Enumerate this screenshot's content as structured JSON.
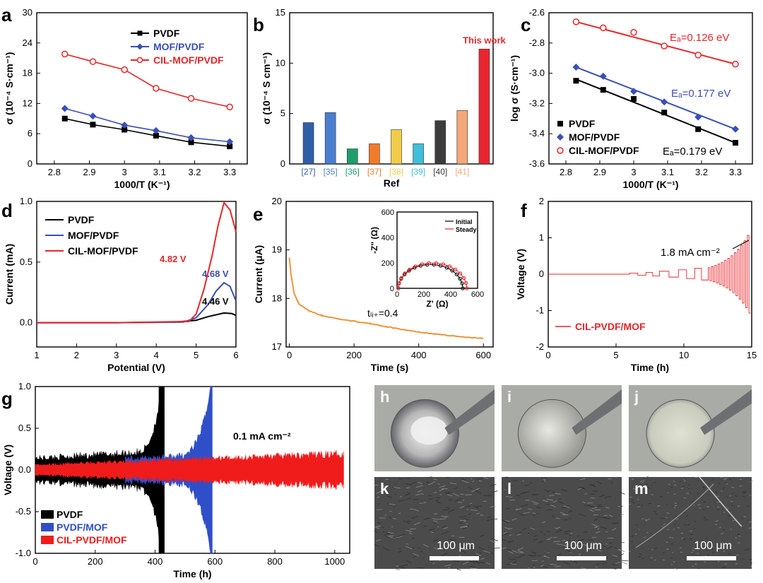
{
  "chart_data": [
    {
      "panel": "a",
      "type": "line",
      "xlabel": "1000/T (K⁻¹)",
      "ylabel": "σ (10⁻⁴ S·cm⁻¹)",
      "xlim": [
        2.75,
        3.35
      ],
      "ylim": [
        0,
        30
      ],
      "xticks": [
        2.8,
        2.9,
        3.0,
        3.1,
        3.2,
        3.3
      ],
      "yticks": [
        0,
        6,
        12,
        18,
        24,
        30
      ],
      "legend": "top-right",
      "x": [
        2.83,
        2.91,
        3.0,
        3.09,
        3.19,
        3.3
      ],
      "series": [
        {
          "name": "PVDF",
          "color": "#000000",
          "marker": "square",
          "values": [
            9.0,
            7.8,
            6.8,
            5.6,
            4.3,
            3.5
          ]
        },
        {
          "name": "MOF/PVDF",
          "color": "#3a4fb5",
          "marker": "diamond",
          "values": [
            11.0,
            9.5,
            7.7,
            6.6,
            5.2,
            4.4
          ]
        },
        {
          "name": "CIL-MOF/PVDF",
          "color": "#e8252a",
          "marker": "circle",
          "values": [
            21.8,
            20.3,
            18.7,
            15.0,
            13.0,
            11.3
          ]
        }
      ]
    },
    {
      "panel": "b",
      "type": "bar",
      "xlabel": "Ref",
      "ylabel": "σ (10⁻⁴ S cm⁻¹)",
      "ylim": [
        0,
        15
      ],
      "yticks": [
        0,
        5,
        10,
        15
      ],
      "categories": [
        "[27]",
        "[35]",
        "[36]",
        "[37]",
        "[38]",
        "[39]",
        "[40]",
        "[41]",
        ""
      ],
      "values": [
        4.1,
        5.1,
        1.5,
        2.0,
        3.4,
        2.0,
        4.3,
        5.3,
        11.4
      ],
      "colors": [
        "#2f5ea8",
        "#4a7fd0",
        "#1e9e6a",
        "#f07c2a",
        "#f0cc4a",
        "#3fbfd8",
        "#3c3c3c",
        "#f2a878",
        "#ea2530"
      ],
      "annotation": "This work"
    },
    {
      "panel": "c",
      "type": "scatter",
      "xlabel": "1000/T (K⁻¹)",
      "ylabel": "log σ (S·cm⁻¹)",
      "xlim": [
        2.75,
        3.35
      ],
      "ylim": [
        -3.6,
        -2.6
      ],
      "xticks": [
        2.8,
        2.9,
        3.0,
        3.1,
        3.2,
        3.3
      ],
      "yticks": [
        -3.6,
        -3.4,
        -3.2,
        -3.0,
        -2.8,
        -2.6
      ],
      "legend": "bottom-left",
      "x": [
        2.83,
        2.91,
        3.0,
        3.09,
        3.19,
        3.3
      ],
      "series": [
        {
          "name": "PVDF",
          "color": "#000000",
          "marker": "square",
          "values": [
            -3.05,
            -3.11,
            -3.17,
            -3.26,
            -3.37,
            -3.46
          ],
          "fit": [
            -3.04,
            -3.46
          ],
          "ea": "Eₐ=0.179 eV"
        },
        {
          "name": "MOF/PVDF",
          "color": "#3a4fb5",
          "marker": "diamond",
          "values": [
            -2.96,
            -3.02,
            -3.12,
            -3.19,
            -3.29,
            -3.37
          ],
          "fit": [
            -2.96,
            -3.37
          ],
          "ea": "Eₐ=0.177 eV"
        },
        {
          "name": "CIL-MOF/PVDF",
          "color": "#e8252a",
          "marker": "circle",
          "values": [
            -2.66,
            -2.7,
            -2.73,
            -2.82,
            -2.88,
            -2.94
          ],
          "fit": [
            -2.66,
            -2.94
          ],
          "ea": "Eₐ=0.126 eV"
        }
      ]
    },
    {
      "panel": "d",
      "type": "line",
      "xlabel": "Potential (V)",
      "ylabel": "Current (mA)",
      "xlim": [
        1,
        6
      ],
      "ylim": [
        -0.2,
        1.0
      ],
      "xticks": [
        1,
        2,
        3,
        4,
        5,
        6
      ],
      "yticks": [
        0.0,
        0.5,
        1.0
      ],
      "legend": "top-left",
      "series": [
        {
          "name": "PVDF",
          "color": "#000000",
          "points": [
            [
              1,
              0.0
            ],
            [
              3,
              0.0
            ],
            [
              4.46,
              0.005
            ],
            [
              5.0,
              0.02
            ],
            [
              5.3,
              0.05
            ],
            [
              5.7,
              0.08
            ],
            [
              5.9,
              0.075
            ],
            [
              6.0,
              0.06
            ]
          ],
          "label": "4.46 V"
        },
        {
          "name": "MOF/PVDF",
          "color": "#3a4fb5",
          "points": [
            [
              1,
              0.0
            ],
            [
              3,
              0.0
            ],
            [
              4.68,
              0.005
            ],
            [
              5.0,
              0.04
            ],
            [
              5.3,
              0.15
            ],
            [
              5.5,
              0.26
            ],
            [
              5.7,
              0.33
            ],
            [
              5.85,
              0.3
            ],
            [
              6.0,
              0.18
            ]
          ],
          "label": "4.68 V"
        },
        {
          "name": "CIL-MOF/PVDF",
          "color": "#e8252a",
          "points": [
            [
              1,
              0.0
            ],
            [
              3,
              0.0
            ],
            [
              4.82,
              0.01
            ],
            [
              5.0,
              0.07
            ],
            [
              5.2,
              0.28
            ],
            [
              5.4,
              0.55
            ],
            [
              5.55,
              0.8
            ],
            [
              5.7,
              0.99
            ],
            [
              5.85,
              0.93
            ],
            [
              6.0,
              0.75
            ]
          ],
          "label": "4.82 V"
        }
      ]
    },
    {
      "panel": "e",
      "type": "line",
      "xlabel": "Time (s)",
      "ylabel": "Current (μA)",
      "xlim": [
        -10,
        630
      ],
      "ylim": [
        17,
        20
      ],
      "xticks": [
        0,
        200,
        400,
        600
      ],
      "yticks": [
        17,
        18,
        19,
        20
      ],
      "annotation": "tₗᵢ₊=0.4",
      "series": [
        {
          "name": "",
          "color": "#f08a24",
          "points": [
            [
              0,
              18.85
            ],
            [
              5,
              18.5
            ],
            [
              15,
              18.1
            ],
            [
              30,
              17.88
            ],
            [
              60,
              17.75
            ],
            [
              100,
              17.65
            ],
            [
              150,
              17.58
            ],
            [
              200,
              17.53
            ],
            [
              250,
              17.48
            ],
            [
              300,
              17.42
            ],
            [
              350,
              17.36
            ],
            [
              400,
              17.31
            ],
            [
              450,
              17.27
            ],
            [
              500,
              17.23
            ],
            [
              550,
              17.2
            ],
            [
              600,
              17.18
            ]
          ]
        }
      ],
      "inset": {
        "type": "scatter",
        "xlabel": "Z' (Ω)",
        "ylabel": "-Z'' (Ω)",
        "xlim": [
          0,
          600
        ],
        "ylim": [
          0,
          600
        ],
        "xticks": [
          0,
          200,
          400,
          600
        ],
        "yticks": [
          0,
          200,
          400,
          600
        ],
        "legend": "top-right",
        "series": [
          {
            "name": "Initial",
            "color": "#000000",
            "center": 250,
            "radius": 240
          },
          {
            "name": "Steady",
            "color": "#e8252a",
            "center": 265,
            "radius": 255
          }
        ]
      }
    },
    {
      "panel": "f",
      "type": "line",
      "xlabel": "Time (h)",
      "ylabel": "Voltage (V)",
      "xlim": [
        0,
        15
      ],
      "ylim": [
        -2,
        2
      ],
      "xticks": [
        0,
        5,
        10,
        15
      ],
      "yticks": [
        -2,
        -1,
        0,
        1,
        2
      ],
      "legend": "bottom-left",
      "annotation": "1.8 mA cm⁻²",
      "series": [
        {
          "name": "CIL-PVDF/MOF",
          "color": "#e8252a"
        }
      ]
    },
    {
      "panel": "g",
      "type": "line",
      "xlabel": "Time (h)",
      "ylabel": "Voltage (V)",
      "xlim": [
        0,
        1050
      ],
      "ylim": [
        -1.0,
        1.0
      ],
      "xticks": [
        0,
        200,
        400,
        600,
        800,
        1000
      ],
      "yticks": [
        -1.0,
        -0.5,
        0.0,
        0.5,
        1.0
      ],
      "legend": "bottom-left",
      "annotation": "0.1 mA cm⁻²",
      "series": [
        {
          "name": "PVDF",
          "color": "#000000",
          "end": 430
        },
        {
          "name": "PVDF/MOF",
          "color": "#2f4fc9",
          "end": 590
        },
        {
          "name": "CIL-PVDF/MOF",
          "color": "#f01c1c",
          "end": 1030
        }
      ]
    }
  ],
  "photos": [
    {
      "label": "h"
    },
    {
      "label": "i"
    },
    {
      "label": "j"
    },
    {
      "label": "k",
      "scale": "100 μm"
    },
    {
      "label": "l",
      "scale": "100 μm"
    },
    {
      "label": "m",
      "scale": "100 μm"
    }
  ]
}
